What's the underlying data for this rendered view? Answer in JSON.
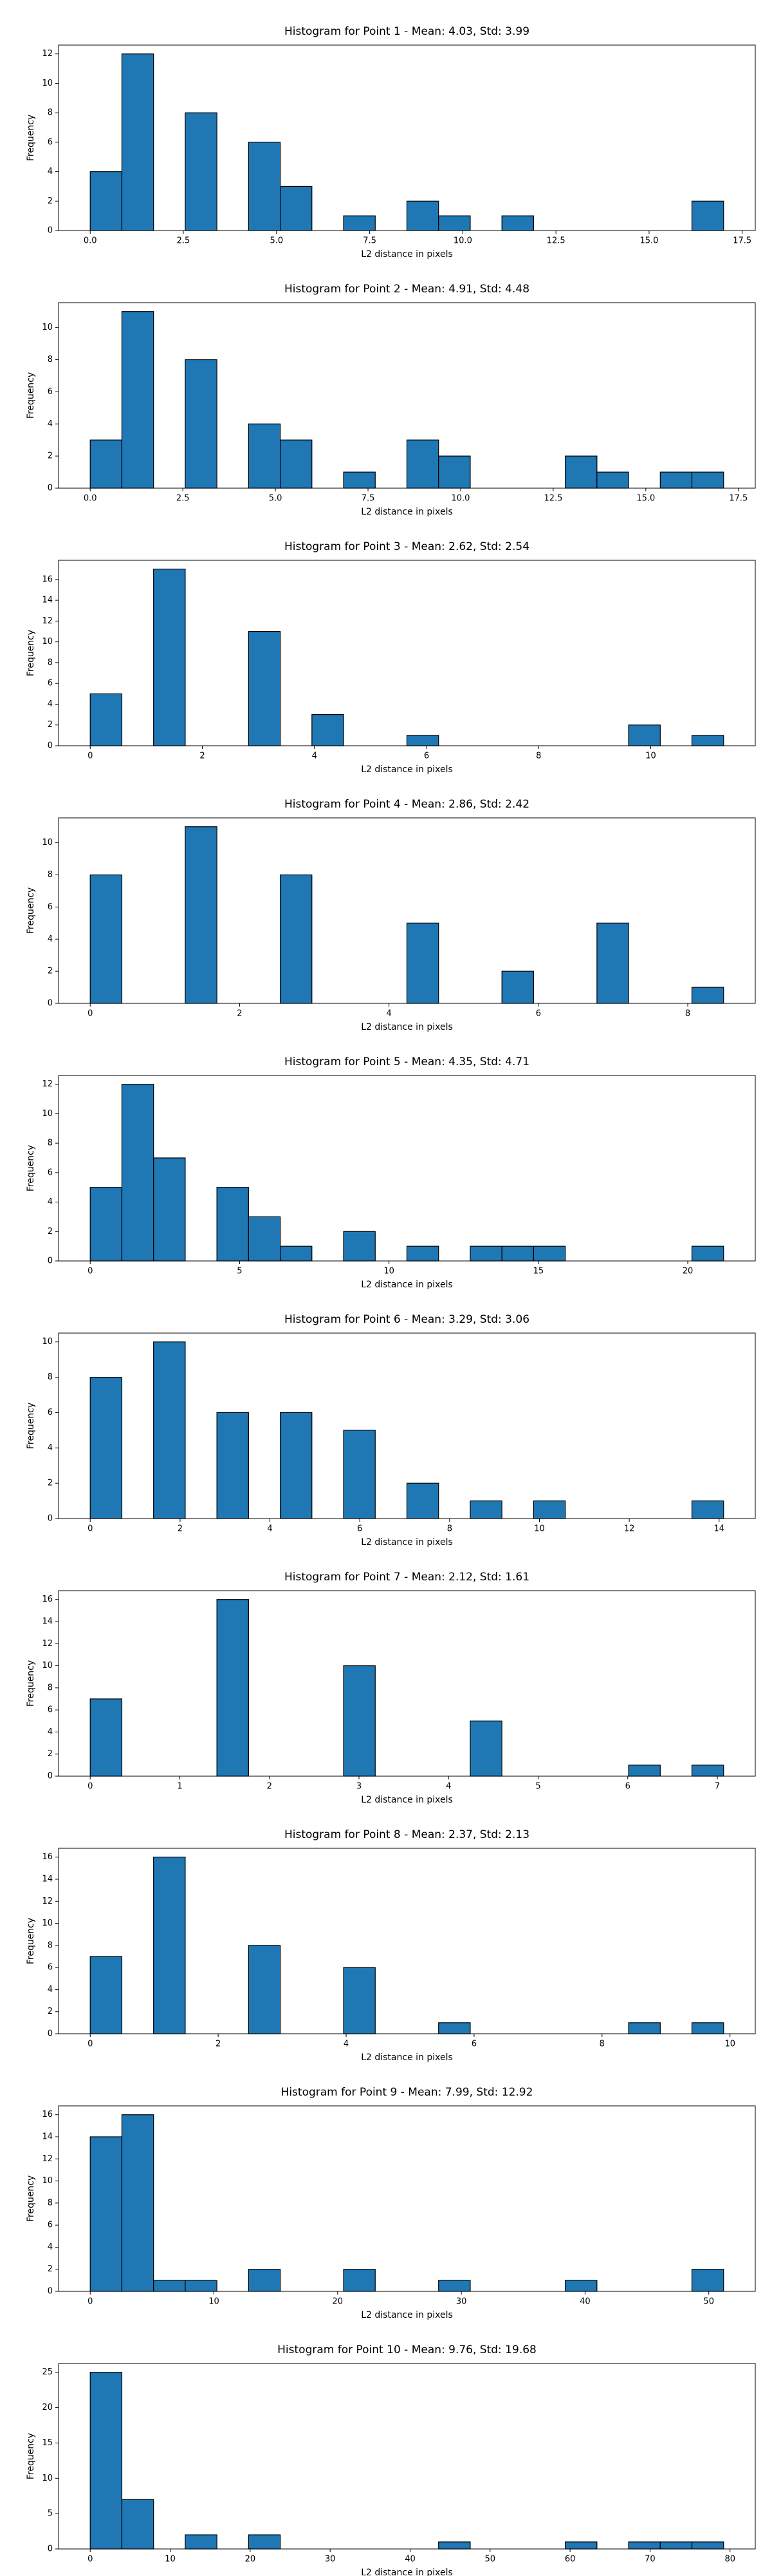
{
  "chart_data": [
    {
      "type": "histogram",
      "title": "Histogram for Point 1 - Mean: 4.03, Std: 3.99",
      "x_label": "L2 distance in pixels",
      "y_label": "Frequency",
      "color": "#1f77b4",
      "bins": [
        0,
        0.85,
        1.7,
        2.55,
        3.4,
        4.25,
        5.1,
        5.95,
        6.8,
        7.65,
        8.5,
        9.35,
        10.2,
        11.05,
        11.9,
        12.75,
        13.6,
        14.45,
        15.3,
        16.15,
        17
      ],
      "values": [
        4,
        12,
        0,
        8,
        0,
        6,
        3,
        0,
        1,
        0,
        2,
        1,
        0,
        1,
        0,
        0,
        0,
        0,
        0,
        2
      ],
      "xlim": [
        -0.85,
        17.85
      ],
      "xticks": [
        {
          "value": 0,
          "label": "0.0"
        },
        2.5,
        {
          "value": 5,
          "label": "5.0"
        },
        7.5,
        {
          "value": 10,
          "label": "10.0"
        },
        12.5,
        {
          "value": 15,
          "label": "15.0"
        },
        17.5
      ],
      "ylim": [
        0,
        12.6
      ],
      "yticks": [
        0,
        2,
        4,
        6,
        8,
        10,
        12
      ]
    },
    {
      "type": "histogram",
      "title": "Histogram for Point 2 - Mean: 4.91, Std: 4.48",
      "x_label": "L2 distance in pixels",
      "y_label": "Frequency",
      "color": "#1f77b4",
      "bins": [
        0,
        0.855,
        1.71,
        2.565,
        3.42,
        4.275,
        5.13,
        5.985,
        6.84,
        7.695,
        8.55,
        9.405,
        10.26,
        11.115,
        11.97,
        12.825,
        13.68,
        14.535,
        15.39,
        16.245,
        17.1
      ],
      "values": [
        3,
        11,
        0,
        8,
        0,
        4,
        3,
        0,
        1,
        0,
        3,
        2,
        0,
        0,
        0,
        2,
        1,
        0,
        1,
        1
      ],
      "xlim": [
        -0.855,
        17.955
      ],
      "xticks": [
        {
          "value": 0,
          "label": "0.0"
        },
        2.5,
        {
          "value": 5,
          "label": "5.0"
        },
        7.5,
        {
          "value": 10,
          "label": "10.0"
        },
        12.5,
        {
          "value": 15,
          "label": "15.0"
        },
        17.5
      ],
      "ylim": [
        0,
        11.55
      ],
      "yticks": [
        0,
        2,
        4,
        6,
        8,
        10
      ]
    },
    {
      "type": "histogram",
      "title": "Histogram for Point 3 - Mean: 2.62, Std: 2.54",
      "x_label": "L2 distance in pixels",
      "y_label": "Frequency",
      "color": "#1f77b4",
      "bins": [
        0,
        0.565,
        1.13,
        1.695,
        2.26,
        2.825,
        3.39,
        3.955,
        4.52,
        5.085,
        5.65,
        6.215,
        6.78,
        7.345,
        7.91,
        8.475,
        9.04,
        9.605,
        10.17,
        10.735,
        11.3
      ],
      "values": [
        5,
        0,
        17,
        0,
        0,
        11,
        0,
        3,
        0,
        0,
        1,
        0,
        0,
        0,
        0,
        0,
        0,
        2,
        0,
        1
      ],
      "xlim": [
        -0.565,
        11.865
      ],
      "xticks": [
        0,
        2,
        4,
        6,
        8,
        10
      ],
      "ylim": [
        0,
        17.85
      ],
      "yticks": [
        0,
        2,
        4,
        6,
        8,
        10,
        12,
        14,
        16
      ]
    },
    {
      "type": "histogram",
      "title": "Histogram for Point 4 - Mean: 2.86, Std: 2.42",
      "x_label": "L2 distance in pixels",
      "y_label": "Frequency",
      "color": "#1f77b4",
      "bins": [
        0,
        0.424,
        0.848,
        1.272,
        1.696,
        2.12,
        2.544,
        2.968,
        3.392,
        3.816,
        4.24,
        4.664,
        5.088,
        5.512,
        5.936,
        6.36,
        6.784,
        7.208,
        7.632,
        8.056,
        8.48
      ],
      "values": [
        8,
        0,
        0,
        11,
        0,
        0,
        8,
        0,
        0,
        0,
        5,
        0,
        0,
        2,
        0,
        0,
        5,
        0,
        0,
        1
      ],
      "xlim": [
        -0.424,
        8.904
      ],
      "xticks": [
        0,
        2,
        4,
        6,
        8
      ],
      "ylim": [
        0,
        11.55
      ],
      "yticks": [
        0,
        2,
        4,
        6,
        8,
        10
      ]
    },
    {
      "type": "histogram",
      "title": "Histogram for Point 5 - Mean: 4.35, Std: 4.71",
      "x_label": "L2 distance in pixels",
      "y_label": "Frequency",
      "color": "#1f77b4",
      "bins": [
        0,
        1.06,
        2.12,
        3.18,
        4.24,
        5.3,
        6.36,
        7.42,
        8.48,
        9.54,
        10.6,
        11.66,
        12.72,
        13.78,
        14.84,
        15.9,
        16.96,
        18.02,
        19.08,
        20.14,
        21.2
      ],
      "values": [
        5,
        12,
        7,
        0,
        5,
        3,
        1,
        0,
        2,
        0,
        1,
        0,
        1,
        1,
        1,
        0,
        0,
        0,
        0,
        1
      ],
      "xlim": [
        -1.06,
        22.26
      ],
      "xticks": [
        0,
        5,
        10,
        15,
        20
      ],
      "ylim": [
        0,
        12.6
      ],
      "yticks": [
        0,
        2,
        4,
        6,
        8,
        10,
        12
      ]
    },
    {
      "type": "histogram",
      "title": "Histogram for Point 6 - Mean: 3.29, Std: 3.06",
      "x_label": "L2 distance in pixels",
      "y_label": "Frequency",
      "color": "#1f77b4",
      "bins": [
        0,
        0.705,
        1.41,
        2.115,
        2.82,
        3.525,
        4.23,
        4.935,
        5.64,
        6.345,
        7.05,
        7.755,
        8.46,
        9.165,
        9.87,
        10.575,
        11.28,
        11.985,
        12.69,
        13.395,
        14.1
      ],
      "values": [
        8,
        0,
        10,
        0,
        6,
        0,
        6,
        0,
        5,
        0,
        2,
        0,
        1,
        0,
        1,
        0,
        0,
        0,
        0,
        1
      ],
      "xlim": [
        -0.705,
        14.805
      ],
      "xticks": [
        0,
        2,
        4,
        6,
        8,
        10,
        12,
        14
      ],
      "ylim": [
        0,
        10.5
      ],
      "yticks": [
        0,
        2,
        4,
        6,
        8,
        10
      ]
    },
    {
      "type": "histogram",
      "title": "Histogram for Point 7 - Mean: 2.12, Std: 1.61",
      "x_label": "L2 distance in pixels",
      "y_label": "Frequency",
      "color": "#1f77b4",
      "bins": [
        0,
        0.3535,
        0.707,
        1.0605,
        1.414,
        1.7675,
        2.121,
        2.4745,
        2.828,
        3.1815,
        3.535,
        3.8885,
        4.242,
        4.5955,
        4.949,
        5.3025,
        5.656,
        6.0095,
        6.363,
        6.7165,
        7.07
      ],
      "values": [
        7,
        0,
        0,
        0,
        16,
        0,
        0,
        0,
        10,
        0,
        0,
        0,
        5,
        0,
        0,
        0,
        0,
        1,
        0,
        1
      ],
      "xlim": [
        -0.3535,
        7.4235
      ],
      "xticks": [
        0,
        1,
        2,
        3,
        4,
        5,
        6,
        7
      ],
      "ylim": [
        0,
        16.8
      ],
      "yticks": [
        0,
        2,
        4,
        6,
        8,
        10,
        12,
        14,
        16
      ]
    },
    {
      "type": "histogram",
      "title": "Histogram for Point 8 - Mean: 2.37, Std: 2.13",
      "x_label": "L2 distance in pixels",
      "y_label": "Frequency",
      "color": "#1f77b4",
      "bins": [
        0,
        0.495,
        0.99,
        1.485,
        1.98,
        2.475,
        2.97,
        3.465,
        3.96,
        4.455,
        4.95,
        5.445,
        5.94,
        6.435,
        6.93,
        7.425,
        7.92,
        8.415,
        8.91,
        9.405,
        9.9
      ],
      "values": [
        7,
        0,
        16,
        0,
        0,
        8,
        0,
        0,
        6,
        0,
        0,
        1,
        0,
        0,
        0,
        0,
        0,
        1,
        0,
        1
      ],
      "xlim": [
        -0.495,
        10.395
      ],
      "xticks": [
        0,
        2,
        4,
        6,
        8,
        10
      ],
      "ylim": [
        0,
        16.8
      ],
      "yticks": [
        0,
        2,
        4,
        6,
        8,
        10,
        12,
        14,
        16
      ]
    },
    {
      "type": "histogram",
      "title": "Histogram for Point 9 - Mean: 7.99, Std: 12.92",
      "x_label": "L2 distance in pixels",
      "y_label": "Frequency",
      "color": "#1f77b4",
      "bins": [
        0,
        2.56,
        5.12,
        7.68,
        10.24,
        12.8,
        15.36,
        17.92,
        20.48,
        23.04,
        25.6,
        28.16,
        30.72,
        33.28,
        35.84,
        38.4,
        40.96,
        43.52,
        46.08,
        48.64,
        51.2
      ],
      "values": [
        14,
        16,
        1,
        1,
        0,
        2,
        0,
        0,
        2,
        0,
        0,
        1,
        0,
        0,
        0,
        1,
        0,
        0,
        0,
        2
      ],
      "xlim": [
        -2.56,
        53.76
      ],
      "xticks": [
        0,
        10,
        20,
        30,
        40,
        50
      ],
      "ylim": [
        0,
        16.8
      ],
      "yticks": [
        0,
        2,
        4,
        6,
        8,
        10,
        12,
        14,
        16
      ]
    },
    {
      "type": "histogram",
      "title": "Histogram for Point 10 - Mean: 9.76, Std: 19.68",
      "x_label": "L2 distance in pixels",
      "y_label": "Frequency",
      "color": "#1f77b4",
      "bins": [
        0,
        3.96,
        7.92,
        11.88,
        15.84,
        19.8,
        23.76,
        27.72,
        31.68,
        35.64,
        39.6,
        43.56,
        47.52,
        51.48,
        55.44,
        59.4,
        63.36,
        67.32,
        71.28,
        75.24,
        79.2
      ],
      "values": [
        25,
        7,
        0,
        2,
        0,
        2,
        0,
        0,
        0,
        0,
        0,
        1,
        0,
        0,
        0,
        1,
        0,
        1,
        1,
        1
      ],
      "xlim": [
        -3.96,
        83.16
      ],
      "xticks": [
        0,
        10,
        20,
        30,
        40,
        50,
        60,
        70,
        80
      ],
      "ylim": [
        0,
        26.25
      ],
      "yticks": [
        0,
        5,
        10,
        15,
        20,
        25
      ]
    }
  ]
}
